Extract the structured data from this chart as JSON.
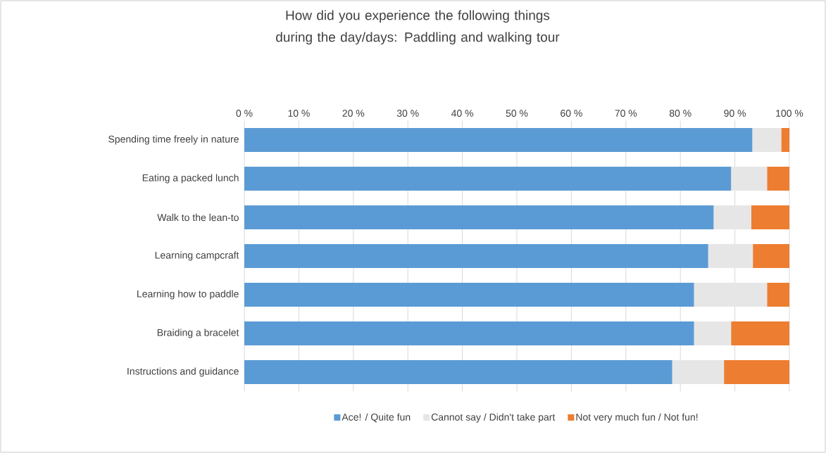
{
  "chart_data": {
    "type": "bar",
    "orientation": "horizontal",
    "stacked": true,
    "title": "How did you experience the following things during the day/days: Paddling and walking tour",
    "categories": [
      "Spending time freely in nature",
      "Eating a packed lunch",
      "Walk to the lean-to",
      "Learning campcraft",
      "Learning how to paddle",
      "Braiding a bracelet",
      "Instructions and guidance"
    ],
    "series": [
      {
        "name": "Ace! / Quite fun",
        "color": "#5b9bd5",
        "values": [
          93.2,
          89.3,
          86.1,
          85.1,
          82.5,
          82.5,
          78.5
        ]
      },
      {
        "name": "Cannot say / Didn't take part",
        "color": "#e7e6e6",
        "values": [
          5.3,
          6.6,
          6.9,
          8.2,
          13.4,
          6.8,
          9.5
        ]
      },
      {
        "name": "Not very much fun / Not fun!",
        "color": "#ed7d31",
        "values": [
          1.5,
          4.1,
          7.0,
          6.7,
          4.1,
          10.7,
          12.0
        ]
      }
    ],
    "xlim": [
      0,
      100
    ],
    "xticks": [
      {
        "value": 0,
        "label": "0 %"
      },
      {
        "value": 10,
        "label": "10 %"
      },
      {
        "value": 20,
        "label": "20 %"
      },
      {
        "value": 30,
        "label": "30 %"
      },
      {
        "value": 40,
        "label": "40 %"
      },
      {
        "value": 50,
        "label": "50 %"
      },
      {
        "value": 60,
        "label": "60 %"
      },
      {
        "value": 70,
        "label": "70 %"
      },
      {
        "value": 80,
        "label": "80 %"
      },
      {
        "value": 90,
        "label": "90 %"
      },
      {
        "value": 100,
        "label": "100 %"
      }
    ],
    "grid": "x",
    "legend": "bottom"
  }
}
